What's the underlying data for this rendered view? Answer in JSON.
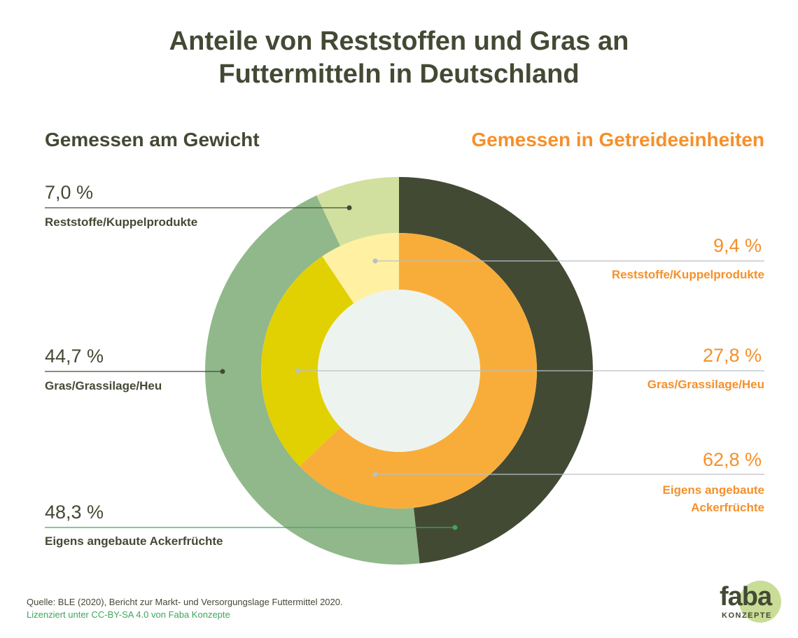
{
  "title_line1": "Anteile von Reststoffen und Gras an",
  "title_line2": "Futtermitteln in Deutschland",
  "left_heading": "Gemessen am Gewicht",
  "right_heading": "Gemessen in Getreideeinheiten",
  "chart_data": [
    {
      "type": "pie",
      "ring": "outer",
      "title": "Gemessen am Gewicht",
      "categories": [
        "Reststoffe/Kuppelprodukte",
        "Gras/Grassilage/Heu",
        "Eigens angebaute Ackerfrüchte"
      ],
      "values": [
        7.0,
        44.7,
        48.3
      ],
      "value_labels": [
        "7,0 %",
        "44,7 %",
        "48,3 %"
      ],
      "colors": [
        "#d2e09f",
        "#91b88b",
        "#434a34"
      ]
    },
    {
      "type": "pie",
      "ring": "inner",
      "title": "Gemessen in Getreideeinheiten",
      "categories": [
        "Reststoffe/Kuppelprodukte",
        "Gras/Grassilage/Heu",
        "Eigens angebaute Ackerfrüchte"
      ],
      "values": [
        9.4,
        27.8,
        62.8
      ],
      "value_labels": [
        "9,4 %",
        "27,8 %",
        "62,8 %"
      ],
      "colors": [
        "#fff0a2",
        "#e2d102",
        "#f8ad3a"
      ]
    }
  ],
  "left_labels": [
    {
      "pct": "7,0 %",
      "label": "Reststoffe/Kuppelprodukte"
    },
    {
      "pct": "44,7 %",
      "label": "Gras/Grassilage/Heu"
    },
    {
      "pct": "48,3 %",
      "label": "Eigens angebaute Ackerfrüchte"
    }
  ],
  "right_labels": [
    {
      "pct": "9,4 %",
      "label": "Reststoffe/Kuppelprodukte"
    },
    {
      "pct": "27,8 %",
      "label": "Gras/Grassilage/Heu"
    },
    {
      "pct": "62,8 %",
      "label_line1": "Eigens angebaute",
      "label_line2": "Ackerfrüchte"
    }
  ],
  "source": "Quelle: BLE (2020), Bericht zur Markt- und Versorgungslage Futtermittel 2020.",
  "license": "Lizenziert unter CC-BY-SA 4.0 von Faba Konzepte",
  "logo": {
    "word": "faba",
    "sub": "KONZEPTE"
  },
  "colors": {
    "dark": "#434a34",
    "orange": "#f5902a",
    "center": "#edf4ef",
    "green_line": "#3fa65a",
    "gray_line": "#b9bfc7"
  }
}
